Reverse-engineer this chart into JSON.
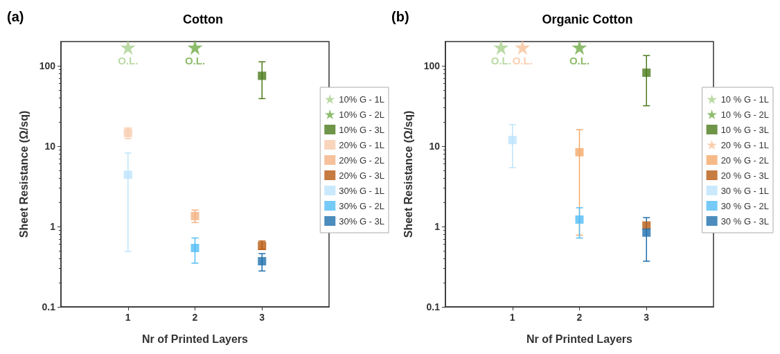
{
  "chart_data": [
    {
      "type": "scatter",
      "title": "Cotton",
      "xlabel": "Nr of Printed Layers",
      "ylabel": "Sheet Resistance (Ω/sq)",
      "log": "y",
      "xlim": [
        0,
        4
      ],
      "xticks": [
        1,
        2,
        3
      ],
      "ylim": [
        0.1,
        200
      ],
      "yticks": [
        0.1,
        1,
        10,
        100
      ],
      "legend": "right",
      "marker": "square",
      "annotations": [
        "(a)",
        {
          "text": "O.L.",
          "x": 1,
          "y": 170
        },
        {
          "text": "O.L.",
          "x": 2,
          "y": 170
        }
      ],
      "series": [
        {
          "name": "10% G - 1L",
          "color": "#a9d18e",
          "marker": "star",
          "x": [
            1
          ],
          "values": [
            170
          ]
        },
        {
          "name": "10% G - 2L",
          "color": "#70ad47",
          "marker": "star",
          "x": [
            2
          ],
          "values": [
            170
          ]
        },
        {
          "name": "10% G - 3L",
          "color": "#4b7a1a",
          "x": [
            3
          ],
          "values": [
            75
          ],
          "errors": [
            [
              39,
              112
            ]
          ]
        },
        {
          "name": "20% G - 1L",
          "color": "#f8cbad",
          "x": [
            1
          ],
          "values": [
            14.6
          ],
          "errors": [
            [
              12.4,
              16.8
            ]
          ]
        },
        {
          "name": "20% G - 2L",
          "color": "#f4b183",
          "x": [
            2
          ],
          "values": [
            1.35
          ],
          "errors": [
            [
              1.12,
              1.6
            ]
          ]
        },
        {
          "name": "20% G - 3L",
          "color": "#b85a12",
          "x": [
            3
          ],
          "values": [
            0.575
          ],
          "errors": [
            [
              0.52,
              0.66
            ]
          ]
        },
        {
          "name": "30% G - 1L",
          "color": "#bde4fc",
          "x": [
            1
          ],
          "values": [
            4.4
          ],
          "errors": [
            [
              0.49,
              8.2
            ]
          ]
        },
        {
          "name": "30% G - 2L",
          "color": "#53bdf5",
          "x": [
            2
          ],
          "values": [
            0.54
          ],
          "errors": [
            [
              0.35,
              0.72
            ]
          ]
        },
        {
          "name": "30% G - 3L",
          "color": "#1f6fad",
          "x": [
            3
          ],
          "values": [
            0.37
          ],
          "errors": [
            [
              0.28,
              0.46
            ]
          ]
        }
      ]
    },
    {
      "type": "scatter",
      "title": "Organic Cotton",
      "xlabel": "Nr of Printed Layers",
      "ylabel": "Sheet Resistance (Ω/sq)",
      "log": "y",
      "xlim": [
        0,
        4
      ],
      "xticks": [
        1,
        2,
        3
      ],
      "ylim": [
        0.1,
        200
      ],
      "yticks": [
        0.1,
        1,
        10,
        100
      ],
      "legend": "right",
      "marker": "square",
      "annotations": [
        "(b)",
        {
          "text": "O.L.",
          "x": 0.83,
          "y": 170
        },
        {
          "text": "O.L.",
          "x": 1.15,
          "y": 170
        },
        {
          "text": "O.L.",
          "x": 2,
          "y": 170
        }
      ],
      "series": [
        {
          "name": "10 % G - 1L",
          "color": "#a9d18e",
          "marker": "star",
          "x": [
            0.83
          ],
          "values": [
            170
          ]
        },
        {
          "name": "10 % G - 2L",
          "color": "#70ad47",
          "marker": "star",
          "x": [
            2
          ],
          "values": [
            170
          ]
        },
        {
          "name": "10 % G - 3L",
          "color": "#4b7a1a",
          "x": [
            3
          ],
          "values": [
            82
          ],
          "errors": [
            [
              31.8,
              134
            ]
          ]
        },
        {
          "name": "20 % G - 1L",
          "color": "#f8c29b",
          "marker": "star",
          "x": [
            1.15
          ],
          "values": [
            170
          ]
        },
        {
          "name": "20 % G - 2L",
          "color": "#f4a96a",
          "x": [
            2
          ],
          "values": [
            8.4
          ],
          "errors": [
            [
              0.78,
              16
            ]
          ]
        },
        {
          "name": "20 % G - 3L",
          "color": "#b85a12",
          "x": [
            3
          ],
          "values": [
            1.03
          ]
        },
        {
          "name": "30 % G - 1L",
          "color": "#bde4fc",
          "x": [
            1
          ],
          "values": [
            11.9
          ],
          "errors": [
            [
              5.4,
              18.5
            ]
          ]
        },
        {
          "name": "30 % G - 2L",
          "color": "#53bdf5",
          "x": [
            2
          ],
          "values": [
            1.22
          ],
          "errors": [
            [
              0.72,
              1.71
            ]
          ]
        },
        {
          "name": "30 % G - 3L",
          "color": "#1f6fad",
          "x": [
            3
          ],
          "values": [
            0.84
          ],
          "errors": [
            [
              0.37,
              1.29
            ]
          ]
        }
      ]
    }
  ]
}
